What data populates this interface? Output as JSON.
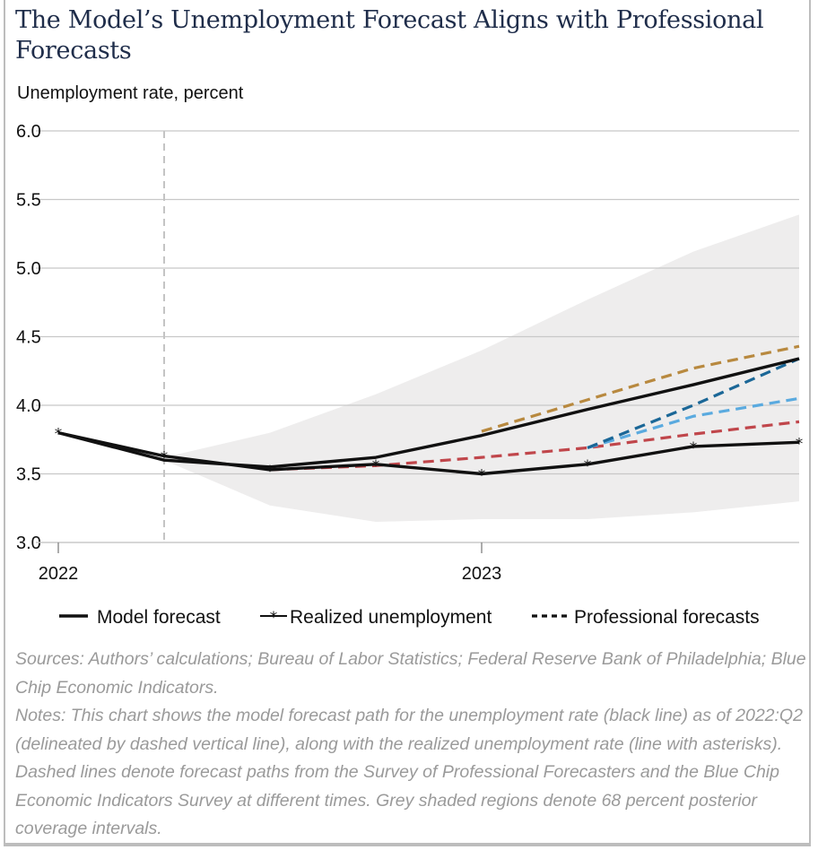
{
  "title": "The Model’s Unemployment Forecast Aligns with Professional Forecasts",
  "sources": "Sources: Authors’ calculations; Bureau of Labor Statistics; Federal Reserve Bank of Philadelphia; Blue Chip Economic Indicators.",
  "notes": "Notes: This chart shows the model forecast path for the unemployment rate (black line) as of 2022:Q2 (delineated by dashed vertical line), along with the realized unemployment rate (line with asterisks). Dashed lines denote forecast paths from the Survey of Professional Forecasters and the Blue Chip Economic Indicators Survey at different times. Grey shaded regions denote 68 percent posterior coverage intervals.",
  "colors": {
    "band": "#eeeded",
    "black": "#111111",
    "grid": "#c8c8c8",
    "gold": "#b8893f",
    "darkblue": "#1b6797",
    "lightblue": "#5aaadf",
    "red": "#c0464b"
  },
  "chart_data": {
    "type": "line",
    "ylabel": "Unemployment rate, percent",
    "ylim": [
      3.0,
      6.0
    ],
    "yticks": [
      "3.0",
      "3.5",
      "4.0",
      "4.5",
      "5.0",
      "5.5",
      "6.0"
    ],
    "yticks_values": [
      3.0,
      3.5,
      4.0,
      4.5,
      5.0,
      5.5,
      6.0
    ],
    "xlim": [
      0,
      7
    ],
    "x_tick_labels": [
      {
        "x": 0,
        "label": "2022"
      },
      {
        "x": 4,
        "label": "2023"
      }
    ],
    "forecast_origin_x": 1,
    "legend": [
      {
        "key": "model",
        "label": "Model forecast"
      },
      {
        "key": "realized",
        "label": "Realized unemployment"
      },
      {
        "key": "professional",
        "label": "Professional forecasts"
      }
    ],
    "band": {
      "x": [
        1,
        2,
        3,
        4,
        5,
        6,
        7
      ],
      "lower": [
        3.6,
        3.27,
        3.15,
        3.17,
        3.17,
        3.22,
        3.3
      ],
      "upper": [
        3.62,
        3.8,
        4.08,
        4.4,
        4.77,
        5.12,
        5.39
      ]
    },
    "series": [
      {
        "key": "model",
        "name": "Model forecast",
        "color": "black",
        "dashed": false,
        "x": [
          0,
          1,
          2,
          3,
          4,
          5,
          6,
          7
        ],
        "y": [
          3.8,
          3.6,
          3.55,
          3.62,
          3.78,
          3.97,
          4.15,
          4.34
        ]
      },
      {
        "key": "realized",
        "name": "Realized unemployment",
        "color": "black",
        "dashed": false,
        "markers": true,
        "x": [
          0,
          1,
          2,
          3,
          4,
          5,
          6,
          7
        ],
        "y": [
          3.8,
          3.63,
          3.53,
          3.57,
          3.5,
          3.57,
          3.7,
          3.73
        ]
      },
      {
        "key": "prof_gold",
        "name": "Professional forecasts",
        "color": "gold",
        "dashed": true,
        "x": [
          4,
          5,
          6,
          7
        ],
        "y": [
          3.81,
          4.04,
          4.27,
          4.43
        ]
      },
      {
        "key": "prof_darkblue",
        "name": "Professional forecasts",
        "color": "darkblue",
        "dashed": true,
        "x": [
          5,
          6,
          7
        ],
        "y": [
          3.69,
          4.0,
          4.34
        ]
      },
      {
        "key": "prof_lightblue",
        "name": "Professional forecasts",
        "color": "lightblue",
        "dashed": true,
        "x": [
          5,
          6,
          7
        ],
        "y": [
          3.69,
          3.92,
          4.05
        ]
      },
      {
        "key": "prof_red",
        "name": "Professional forecasts",
        "color": "red",
        "dashed": true,
        "x": [
          2,
          3,
          4,
          5,
          6,
          7
        ],
        "y": [
          3.53,
          3.56,
          3.62,
          3.69,
          3.79,
          3.88
        ]
      }
    ]
  }
}
